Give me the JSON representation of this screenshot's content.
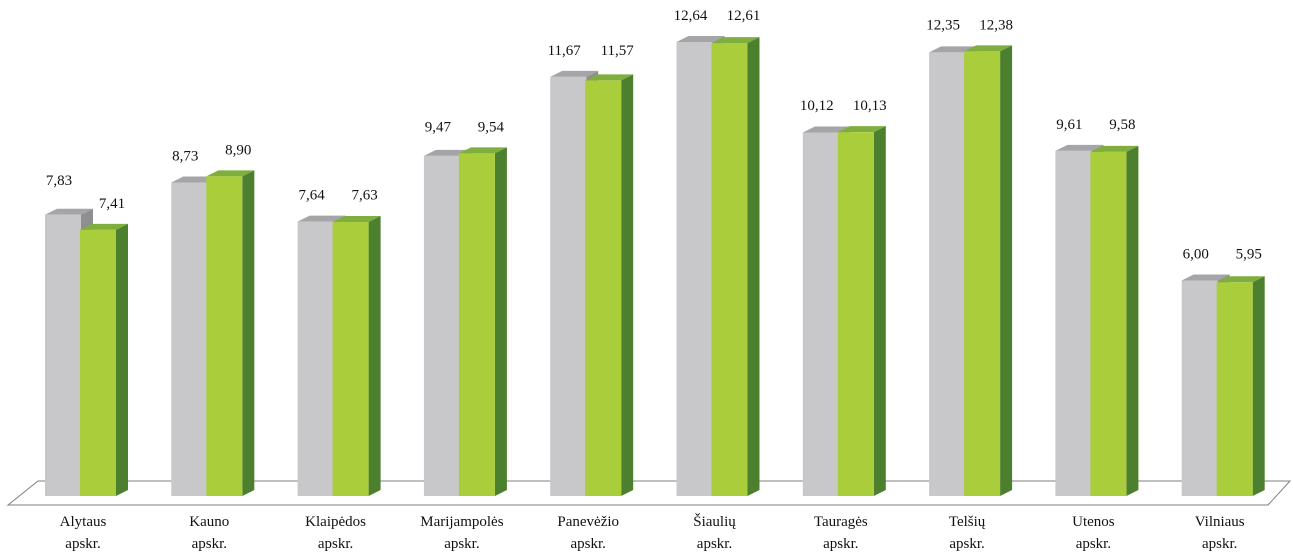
{
  "chart_data": {
    "type": "bar",
    "title": "",
    "xlabel": "",
    "ylabel": "",
    "ylim": [
      0,
      12.64
    ],
    "grid": false,
    "legend": "none",
    "categories": [
      [
        "Alytaus",
        "apskr."
      ],
      [
        "Kauno",
        "apskr."
      ],
      [
        "Klaipėdos",
        "apskr."
      ],
      [
        "Marijampolės",
        "apskr."
      ],
      [
        "Panevėžio",
        "apskr."
      ],
      [
        "Šiaulių",
        "apskr."
      ],
      [
        "Tauragės",
        "apskr."
      ],
      [
        "Telšių",
        "apskr."
      ],
      [
        "Utenos",
        "apskr."
      ],
      [
        "Vilniaus",
        "apskr."
      ]
    ],
    "series": [
      {
        "values": [
          7.83,
          8.73,
          7.64,
          9.47,
          11.67,
          12.64,
          10.12,
          12.35,
          9.61,
          6.0
        ],
        "labels": [
          "7,83",
          "8,73",
          "7,64",
          "9,47",
          "11,67",
          "12,64",
          "10,12",
          "12,35",
          "9,61",
          "6,00"
        ],
        "colors": {
          "front": "#c8c8ca",
          "side": "#8f8f92",
          "top": "#a5a5a8"
        }
      },
      {
        "values": [
          7.41,
          8.9,
          7.63,
          9.54,
          11.57,
          12.61,
          10.13,
          12.38,
          9.58,
          5.95
        ],
        "labels": [
          "7,41",
          "8,90",
          "7,63",
          "9,54",
          "11,57",
          "12,61",
          "10,13",
          "12,38",
          "9,58",
          "5,95"
        ],
        "colors": {
          "front": "#a9cd3b",
          "side": "#4c7f2e",
          "top": "#7fae3f"
        }
      }
    ]
  }
}
